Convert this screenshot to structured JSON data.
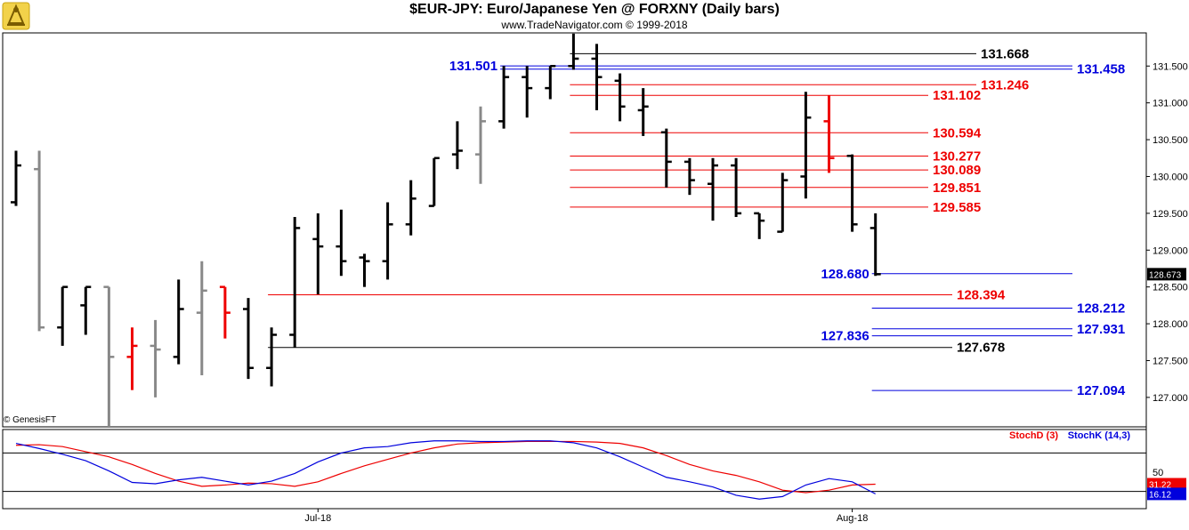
{
  "header": {
    "title": "$EUR-JPY:  Euro/Japanese Yen @ FORXNY  (Daily bars)",
    "subtitle": "www.TradeNavigator.com © 1999-2018",
    "copyright": "© GenesisFT"
  },
  "chart_data": [
    {
      "type": "ohlc",
      "title": "$EUR-JPY:  Euro/Japanese Yen @ FORXNY  (Daily bars)",
      "ylim": [
        126.6,
        131.95
      ],
      "y_ticks": [
        "131.500",
        "131.000",
        "130.500",
        "130.000",
        "129.500",
        "129.000",
        "128.500",
        "128.000",
        "127.500",
        "127.000"
      ],
      "x_ticks": [
        {
          "label": "Jul-18",
          "bar": 13
        },
        {
          "label": "Aug-18",
          "bar": 36
        }
      ],
      "last_price": "128.673",
      "grid": false,
      "colors": {
        "up": "#000000",
        "inside": "#888888",
        "outside": "#ee0000",
        "blue": "#0000dd",
        "red": "#ee0000"
      },
      "bars": [
        {
          "o": 129.65,
          "h": 130.35,
          "l": 129.6,
          "c": 130.15,
          "color": "black"
        },
        {
          "o": 130.1,
          "h": 130.35,
          "l": 127.9,
          "c": 127.95,
          "color": "gray"
        },
        {
          "o": 127.95,
          "h": 128.5,
          "l": 127.7,
          "c": 128.5,
          "color": "black"
        },
        {
          "o": 128.25,
          "h": 128.5,
          "l": 127.85,
          "c": 128.5,
          "color": "black"
        },
        {
          "o": 128.5,
          "h": 128.5,
          "l": 126.6,
          "c": 127.55,
          "color": "gray"
        },
        {
          "o": 127.55,
          "h": 127.95,
          "l": 127.1,
          "c": 127.7,
          "color": "red"
        },
        {
          "o": 127.7,
          "h": 128.05,
          "l": 127.0,
          "c": 127.65,
          "color": "gray"
        },
        {
          "o": 127.55,
          "h": 128.6,
          "l": 127.45,
          "c": 128.2,
          "color": "black"
        },
        {
          "o": 128.15,
          "h": 128.85,
          "l": 127.3,
          "c": 128.45,
          "color": "gray"
        },
        {
          "o": 128.5,
          "h": 128.5,
          "l": 127.8,
          "c": 128.15,
          "color": "red"
        },
        {
          "o": 128.2,
          "h": 128.35,
          "l": 127.25,
          "c": 127.4,
          "color": "black"
        },
        {
          "o": 127.4,
          "h": 127.95,
          "l": 127.15,
          "c": 127.85,
          "color": "black"
        },
        {
          "o": 127.85,
          "h": 129.45,
          "l": 127.68,
          "c": 129.3,
          "color": "black"
        },
        {
          "o": 129.15,
          "h": 129.5,
          "l": 128.4,
          "c": 129.05,
          "color": "black"
        },
        {
          "o": 129.05,
          "h": 129.55,
          "l": 128.65,
          "c": 128.85,
          "color": "black"
        },
        {
          "o": 128.9,
          "h": 128.95,
          "l": 128.5,
          "c": 128.85,
          "color": "black"
        },
        {
          "o": 128.85,
          "h": 129.65,
          "l": 128.6,
          "c": 129.35,
          "color": "black"
        },
        {
          "o": 129.35,
          "h": 129.95,
          "l": 129.2,
          "c": 129.7,
          "color": "black"
        },
        {
          "o": 129.6,
          "h": 130.25,
          "l": 129.6,
          "c": 130.25,
          "color": "black"
        },
        {
          "o": 130.3,
          "h": 130.75,
          "l": 130.1,
          "c": 130.35,
          "color": "black"
        },
        {
          "o": 130.3,
          "h": 130.95,
          "l": 129.9,
          "c": 130.75,
          "color": "gray"
        },
        {
          "o": 130.75,
          "h": 131.5,
          "l": 130.65,
          "c": 131.35,
          "color": "black"
        },
        {
          "o": 131.35,
          "h": 131.5,
          "l": 130.8,
          "c": 131.2,
          "color": "black"
        },
        {
          "o": 131.2,
          "h": 131.5,
          "l": 131.05,
          "c": 131.5,
          "color": "black"
        },
        {
          "o": 131.5,
          "h": 131.94,
          "l": 131.45,
          "c": 131.6,
          "color": "black"
        },
        {
          "o": 131.6,
          "h": 131.8,
          "l": 130.9,
          "c": 131.35,
          "color": "black"
        },
        {
          "o": 131.3,
          "h": 131.4,
          "l": 130.75,
          "c": 130.95,
          "color": "black"
        },
        {
          "o": 130.9,
          "h": 131.2,
          "l": 130.55,
          "c": 130.95,
          "color": "black"
        },
        {
          "o": 130.6,
          "h": 130.65,
          "l": 129.85,
          "c": 130.2,
          "color": "black"
        },
        {
          "o": 130.2,
          "h": 130.25,
          "l": 129.75,
          "c": 129.95,
          "color": "black"
        },
        {
          "o": 129.9,
          "h": 130.25,
          "l": 129.4,
          "c": 130.15,
          "color": "black"
        },
        {
          "o": 130.15,
          "h": 130.25,
          "l": 129.45,
          "c": 129.5,
          "color": "black"
        },
        {
          "o": 129.5,
          "h": 129.5,
          "l": 129.15,
          "c": 129.4,
          "color": "black"
        },
        {
          "o": 129.25,
          "h": 130.05,
          "l": 129.25,
          "c": 129.95,
          "color": "black"
        },
        {
          "o": 130.0,
          "h": 131.15,
          "l": 129.7,
          "c": 130.8,
          "color": "black"
        },
        {
          "o": 130.75,
          "h": 131.1,
          "l": 130.05,
          "c": 130.25,
          "color": "red"
        },
        {
          "o": 130.28,
          "h": 130.3,
          "l": 129.25,
          "c": 129.35,
          "color": "black"
        },
        {
          "o": 129.3,
          "h": 129.5,
          "l": 128.65,
          "c": 128.673,
          "color": "black"
        }
      ],
      "levels": [
        {
          "value": 131.668,
          "label": "131.668",
          "color": "black",
          "from_bar": 24,
          "label_side": "right-of-line",
          "line_to": 1097
        },
        {
          "value": 131.458,
          "label": "131.458",
          "color": "blue",
          "from_bar": 21,
          "label_side": "right-of-line",
          "line_to": 1205
        },
        {
          "value": 131.501,
          "label": "131.501",
          "color": "blue",
          "from_bar": 21,
          "label_side": "left-of-line",
          "line_to": 1205
        },
        {
          "value": 131.246,
          "label": "131.246",
          "color": "red",
          "from_bar": 24,
          "label_side": "right-of-line",
          "line_to": 1097
        },
        {
          "value": 131.102,
          "label": "131.102",
          "color": "red",
          "from_bar": 24,
          "label_side": "right-of-line",
          "line_to": 1043
        },
        {
          "value": 130.594,
          "label": "130.594",
          "color": "red",
          "from_bar": 24,
          "label_side": "right-of-line",
          "line_to": 1043
        },
        {
          "value": 130.277,
          "label": "130.277",
          "color": "red",
          "from_bar": 24,
          "label_side": "right-of-line",
          "line_to": 1043
        },
        {
          "value": 130.089,
          "label": "130.089",
          "color": "red",
          "from_bar": 24,
          "label_side": "right-of-line",
          "line_to": 1043
        },
        {
          "value": 129.851,
          "label": "129.851",
          "color": "red",
          "from_bar": 24,
          "label_side": "right-of-line",
          "line_to": 1043
        },
        {
          "value": 129.585,
          "label": "129.585",
          "color": "red",
          "from_bar": 24,
          "label_side": "right-of-line",
          "line_to": 1043
        },
        {
          "value": 128.68,
          "label": "128.680",
          "color": "blue",
          "from_bar": 37,
          "label_side": "left-of-line",
          "line_to": 1205
        },
        {
          "value": 128.394,
          "label": "128.394",
          "color": "red",
          "from_bar": 11,
          "label_side": "right-of-line",
          "line_to": 1070
        },
        {
          "value": 128.212,
          "label": "128.212",
          "color": "blue",
          "from_bar": 37,
          "label_side": "right-of-line",
          "line_to": 1205
        },
        {
          "value": 127.931,
          "label": "127.931",
          "color": "blue",
          "from_bar": 37,
          "label_side": "right-of-line",
          "line_to": 1205
        },
        {
          "value": 127.836,
          "label": "127.836",
          "color": "blue",
          "from_bar": 37,
          "label_side": "left-of-line",
          "line_to": 1205
        },
        {
          "value": 127.678,
          "label": "127.678",
          "color": "black",
          "from_bar": 11,
          "label_side": "right-of-line",
          "line_to": 1070
        },
        {
          "value": 127.094,
          "label": "127.094",
          "color": "blue",
          "from_bar": 37,
          "label_side": "right-of-line",
          "line_to": 1205
        }
      ]
    },
    {
      "type": "line",
      "title": "",
      "ylim": [
        0,
        100
      ],
      "y_ticks": [
        "50"
      ],
      "reference_levels": [
        80,
        20
      ],
      "series": [
        {
          "name": "StochD (3)",
          "color": "#ee0000",
          "last": "31.22",
          "values": [
            92,
            93,
            90,
            82,
            74,
            62,
            48,
            36,
            28,
            30,
            33,
            32,
            28,
            35,
            48,
            60,
            70,
            80,
            88,
            94,
            96,
            97,
            98,
            98,
            98,
            97,
            95,
            88,
            76,
            62,
            52,
            45,
            35,
            22,
            18,
            22,
            30,
            31.22
          ]
        },
        {
          "name": "StochK (14,3)",
          "color": "#0000dd",
          "last": "16.12",
          "values": [
            95,
            87,
            78,
            68,
            52,
            34,
            32,
            38,
            42,
            36,
            30,
            36,
            48,
            66,
            80,
            88,
            90,
            96,
            99,
            99,
            98,
            98,
            99,
            99,
            96,
            88,
            74,
            58,
            42,
            35,
            27,
            14,
            8,
            12,
            30,
            40,
            35,
            16.12
          ]
        }
      ]
    }
  ]
}
